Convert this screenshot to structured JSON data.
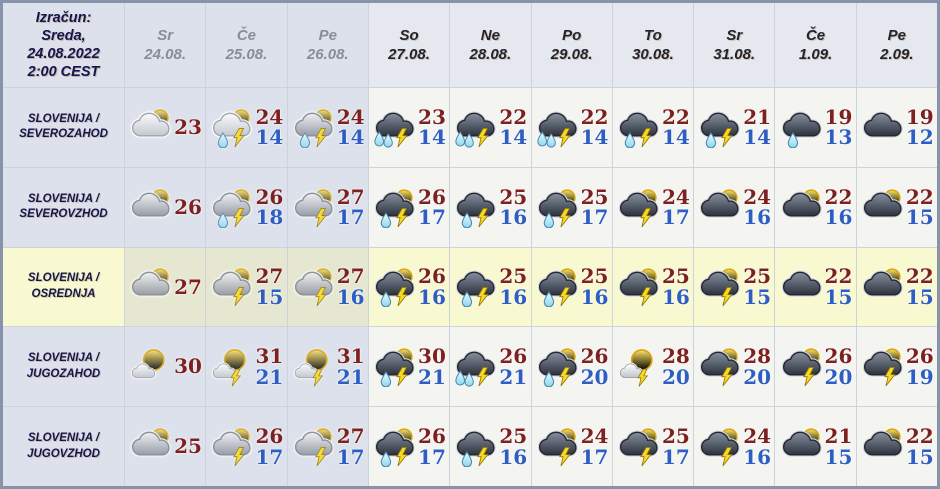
{
  "colors": {
    "temp_high": "#7d2020",
    "temp_low": "#2e5ec4",
    "highlight_row_bg": "#f8f9d0",
    "past_columns_bg": "#dde1eb",
    "future_columns_bg": "#f4f4f0",
    "frame_border": "#8793a9",
    "header_past_text": "#8a8d96",
    "header_future_text": "#23232c",
    "region_text": "#15154e"
  },
  "table": {
    "calc_lines": [
      "Izračun:",
      "Sreda,",
      "24.08.2022",
      "2:00 CEST"
    ],
    "columns": [
      {
        "day": "Sr",
        "date": "24.08.",
        "dimmed": true
      },
      {
        "day": "Če",
        "date": "25.08.",
        "dimmed": true
      },
      {
        "day": "Pe",
        "date": "26.08.",
        "dimmed": true
      },
      {
        "day": "So",
        "date": "27.08.",
        "dimmed": false
      },
      {
        "day": "Ne",
        "date": "28.08.",
        "dimmed": false
      },
      {
        "day": "Po",
        "date": "29.08.",
        "dimmed": false
      },
      {
        "day": "To",
        "date": "30.08.",
        "dimmed": false
      },
      {
        "day": "Sr",
        "date": "31.08.",
        "dimmed": false
      },
      {
        "day": "Če",
        "date": "1.09.",
        "dimmed": false
      },
      {
        "day": "Pe",
        "date": "2.09.",
        "dimmed": false
      }
    ],
    "rows": [
      {
        "region_lines": [
          "SLOVENIJA /",
          "SEVEROZAHOD"
        ],
        "highlight": false,
        "cells": [
          {
            "icon": {
              "sun": "peek",
              "cloud": "light",
              "drops": 0,
              "bolt": false,
              "name": "sun-behind-cloud-icon"
            },
            "high": "23",
            "low": ""
          },
          {
            "icon": {
              "sun": "peek",
              "cloud": "light",
              "drops": 1,
              "bolt": true,
              "name": "sun-cloud-rain-lightning-icon"
            },
            "high": "24",
            "low": "14"
          },
          {
            "icon": {
              "sun": "peek",
              "cloud": "gray",
              "drops": 1,
              "bolt": true,
              "name": "sun-cloud-rain-lightning-icon"
            },
            "high": "24",
            "low": "14"
          },
          {
            "icon": {
              "sun": "none",
              "cloud": "dark",
              "drops": 2,
              "bolt": true,
              "name": "storm-heavy-rain-lightning-icon"
            },
            "high": "23",
            "low": "14"
          },
          {
            "icon": {
              "sun": "none",
              "cloud": "dark",
              "drops": 2,
              "bolt": true,
              "name": "storm-heavy-rain-lightning-icon"
            },
            "high": "22",
            "low": "14"
          },
          {
            "icon": {
              "sun": "none",
              "cloud": "dark",
              "drops": 2,
              "bolt": true,
              "name": "storm-heavy-rain-lightning-icon"
            },
            "high": "22",
            "low": "14"
          },
          {
            "icon": {
              "sun": "none",
              "cloud": "dark",
              "drops": 1,
              "bolt": true,
              "name": "storm-rain-lightning-icon"
            },
            "high": "22",
            "low": "14"
          },
          {
            "icon": {
              "sun": "none",
              "cloud": "dark",
              "drops": 1,
              "bolt": true,
              "name": "storm-rain-lightning-icon"
            },
            "high": "21",
            "low": "14"
          },
          {
            "icon": {
              "sun": "none",
              "cloud": "dark",
              "drops": 1,
              "bolt": false,
              "name": "cloud-rain-icon"
            },
            "high": "19",
            "low": "13"
          },
          {
            "icon": {
              "sun": "none",
              "cloud": "dark",
              "drops": 0,
              "bolt": false,
              "name": "dark-cloud-icon"
            },
            "high": "19",
            "low": "12"
          }
        ]
      },
      {
        "region_lines": [
          "SLOVENIJA /",
          "SEVEROVZHOD"
        ],
        "highlight": false,
        "cells": [
          {
            "icon": {
              "sun": "peek",
              "cloud": "gray",
              "drops": 0,
              "bolt": false,
              "name": "sun-behind-cloud-icon"
            },
            "high": "26",
            "low": ""
          },
          {
            "icon": {
              "sun": "peek",
              "cloud": "gray",
              "drops": 1,
              "bolt": true,
              "name": "sun-cloud-rain-lightning-icon"
            },
            "high": "26",
            "low": "18"
          },
          {
            "icon": {
              "sun": "peek",
              "cloud": "gray",
              "drops": 0,
              "bolt": true,
              "name": "sun-cloud-lightning-icon"
            },
            "high": "27",
            "low": "17"
          },
          {
            "icon": {
              "sun": "peek",
              "cloud": "dark",
              "drops": 1,
              "bolt": true,
              "name": "sun-storm-rain-lightning-icon"
            },
            "high": "26",
            "low": "17"
          },
          {
            "icon": {
              "sun": "none",
              "cloud": "dark",
              "drops": 1,
              "bolt": true,
              "name": "storm-rain-lightning-icon"
            },
            "high": "25",
            "low": "16"
          },
          {
            "icon": {
              "sun": "peek",
              "cloud": "dark",
              "drops": 1,
              "bolt": true,
              "name": "sun-storm-rain-lightning-icon"
            },
            "high": "25",
            "low": "17"
          },
          {
            "icon": {
              "sun": "peek",
              "cloud": "dark",
              "drops": 0,
              "bolt": true,
              "name": "sun-cloud-lightning-icon"
            },
            "high": "24",
            "low": "17"
          },
          {
            "icon": {
              "sun": "peek",
              "cloud": "dark",
              "drops": 0,
              "bolt": false,
              "name": "sun-behind-dark-cloud-icon"
            },
            "high": "24",
            "low": "16"
          },
          {
            "icon": {
              "sun": "peek",
              "cloud": "dark",
              "drops": 0,
              "bolt": false,
              "name": "sun-behind-dark-cloud-icon"
            },
            "high": "22",
            "low": "16"
          },
          {
            "icon": {
              "sun": "peek",
              "cloud": "dark",
              "drops": 0,
              "bolt": false,
              "name": "sun-behind-dark-cloud-icon"
            },
            "high": "22",
            "low": "15"
          }
        ]
      },
      {
        "region_lines": [
          "SLOVENIJA /",
          "OSREDNJA"
        ],
        "highlight": true,
        "cells": [
          {
            "icon": {
              "sun": "peek",
              "cloud": "gray",
              "drops": 0,
              "bolt": false,
              "name": "sun-behind-cloud-icon"
            },
            "high": "27",
            "low": ""
          },
          {
            "icon": {
              "sun": "peek",
              "cloud": "gray",
              "drops": 0,
              "bolt": true,
              "name": "sun-cloud-lightning-icon"
            },
            "high": "27",
            "low": "15"
          },
          {
            "icon": {
              "sun": "peek",
              "cloud": "gray",
              "drops": 0,
              "bolt": true,
              "name": "sun-cloud-lightning-icon"
            },
            "high": "27",
            "low": "16"
          },
          {
            "icon": {
              "sun": "peek",
              "cloud": "dark",
              "drops": 1,
              "bolt": true,
              "name": "sun-storm-rain-lightning-icon"
            },
            "high": "26",
            "low": "16"
          },
          {
            "icon": {
              "sun": "none",
              "cloud": "dark",
              "drops": 1,
              "bolt": true,
              "name": "storm-rain-lightning-icon"
            },
            "high": "25",
            "low": "16"
          },
          {
            "icon": {
              "sun": "peek",
              "cloud": "dark",
              "drops": 1,
              "bolt": true,
              "name": "sun-storm-rain-lightning-icon"
            },
            "high": "25",
            "low": "16"
          },
          {
            "icon": {
              "sun": "peek",
              "cloud": "dark",
              "drops": 0,
              "bolt": true,
              "name": "sun-cloud-lightning-icon"
            },
            "high": "25",
            "low": "16"
          },
          {
            "icon": {
              "sun": "peek",
              "cloud": "dark",
              "drops": 0,
              "bolt": true,
              "name": "sun-cloud-lightning-icon"
            },
            "high": "25",
            "low": "15"
          },
          {
            "icon": {
              "sun": "none",
              "cloud": "dark",
              "drops": 0,
              "bolt": false,
              "name": "dark-cloud-icon"
            },
            "high": "22",
            "low": "15"
          },
          {
            "icon": {
              "sun": "peek",
              "cloud": "dark",
              "drops": 0,
              "bolt": false,
              "name": "sun-behind-dark-cloud-icon"
            },
            "high": "22",
            "low": "15"
          }
        ]
      },
      {
        "region_lines": [
          "SLOVENIJA /",
          "JUGOZAHOD"
        ],
        "highlight": false,
        "cells": [
          {
            "icon": {
              "sun": "big",
              "cloud": "small-light",
              "drops": 0,
              "bolt": false,
              "name": "sunny-small-cloud-icon"
            },
            "high": "30",
            "low": ""
          },
          {
            "icon": {
              "sun": "big",
              "cloud": "small-light",
              "drops": 0,
              "bolt": true,
              "name": "sunny-cloud-lightning-icon"
            },
            "high": "31",
            "low": "21"
          },
          {
            "icon": {
              "sun": "big",
              "cloud": "small-light",
              "drops": 0,
              "bolt": true,
              "name": "sunny-cloud-lightning-icon"
            },
            "high": "31",
            "low": "21"
          },
          {
            "icon": {
              "sun": "peek",
              "cloud": "dark",
              "drops": 1,
              "bolt": true,
              "name": "sun-storm-rain-lightning-icon"
            },
            "high": "30",
            "low": "21"
          },
          {
            "icon": {
              "sun": "none",
              "cloud": "dark",
              "drops": 2,
              "bolt": true,
              "name": "storm-heavy-rain-lightning-icon"
            },
            "high": "26",
            "low": "21"
          },
          {
            "icon": {
              "sun": "peek",
              "cloud": "dark",
              "drops": 1,
              "bolt": true,
              "name": "sun-storm-rain-lightning-icon"
            },
            "high": "26",
            "low": "20"
          },
          {
            "icon": {
              "sun": "big",
              "cloud": "small-light",
              "drops": 0,
              "bolt": true,
              "name": "sunny-cloud-lightning-icon"
            },
            "high": "28",
            "low": "20"
          },
          {
            "icon": {
              "sun": "peek",
              "cloud": "dark",
              "drops": 0,
              "bolt": true,
              "name": "sun-cloud-lightning-icon"
            },
            "high": "28",
            "low": "20"
          },
          {
            "icon": {
              "sun": "peek",
              "cloud": "dark",
              "drops": 0,
              "bolt": true,
              "name": "sun-cloud-lightning-icon"
            },
            "high": "26",
            "low": "20"
          },
          {
            "icon": {
              "sun": "peek",
              "cloud": "dark",
              "drops": 0,
              "bolt": true,
              "name": "sun-cloud-lightning-icon"
            },
            "high": "26",
            "low": "19"
          }
        ]
      },
      {
        "region_lines": [
          "SLOVENIJA /",
          "JUGOVZHOD"
        ],
        "highlight": false,
        "cells": [
          {
            "icon": {
              "sun": "peek",
              "cloud": "gray",
              "drops": 0,
              "bolt": false,
              "name": "sun-behind-cloud-icon"
            },
            "high": "25",
            "low": ""
          },
          {
            "icon": {
              "sun": "peek",
              "cloud": "gray",
              "drops": 0,
              "bolt": true,
              "name": "sun-cloud-lightning-icon"
            },
            "high": "26",
            "low": "17"
          },
          {
            "icon": {
              "sun": "peek",
              "cloud": "gray",
              "drops": 0,
              "bolt": true,
              "name": "sun-cloud-lightning-icon"
            },
            "high": "27",
            "low": "17"
          },
          {
            "icon": {
              "sun": "peek",
              "cloud": "dark",
              "drops": 1,
              "bolt": true,
              "name": "sun-storm-rain-lightning-icon"
            },
            "high": "26",
            "low": "17"
          },
          {
            "icon": {
              "sun": "none",
              "cloud": "dark",
              "drops": 1,
              "bolt": true,
              "name": "storm-rain-lightning-icon"
            },
            "high": "25",
            "low": "16"
          },
          {
            "icon": {
              "sun": "peek",
              "cloud": "dark",
              "drops": 0,
              "bolt": true,
              "name": "sun-cloud-lightning-icon"
            },
            "high": "24",
            "low": "17"
          },
          {
            "icon": {
              "sun": "peek",
              "cloud": "dark",
              "drops": 0,
              "bolt": true,
              "name": "sun-cloud-lightning-icon"
            },
            "high": "25",
            "low": "17"
          },
          {
            "icon": {
              "sun": "peek",
              "cloud": "dark",
              "drops": 0,
              "bolt": true,
              "name": "sun-cloud-lightning-icon"
            },
            "high": "24",
            "low": "16"
          },
          {
            "icon": {
              "sun": "peek",
              "cloud": "dark",
              "drops": 0,
              "bolt": false,
              "name": "sun-behind-dark-cloud-icon"
            },
            "high": "21",
            "low": "15"
          },
          {
            "icon": {
              "sun": "peek",
              "cloud": "dark",
              "drops": 0,
              "bolt": false,
              "name": "sun-behind-dark-cloud-icon"
            },
            "high": "22",
            "low": "15"
          }
        ]
      }
    ]
  }
}
